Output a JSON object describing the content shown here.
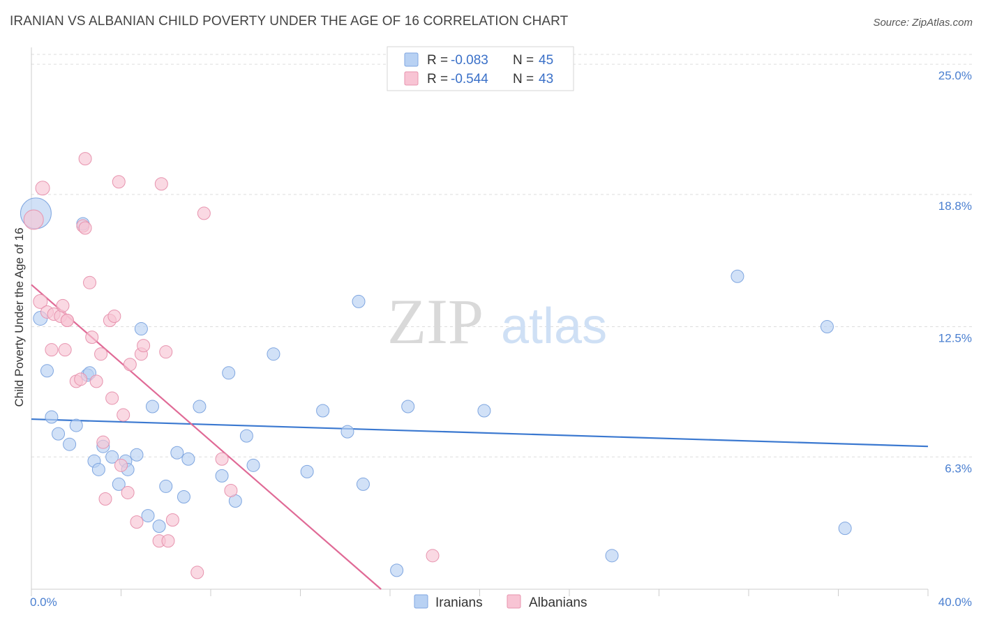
{
  "title": "IRANIAN VS ALBANIAN CHILD POVERTY UNDER THE AGE OF 16 CORRELATION CHART",
  "source": "Source: ZipAtlas.com",
  "watermark": {
    "zip": "ZIP",
    "atlas": "atlas"
  },
  "legend": {
    "r_label": "R = ",
    "n_label": "N = ",
    "items": [
      {
        "r": "-0.083",
        "n": "45",
        "fill": "#b8d1f3",
        "stroke": "#7fa6e0"
      },
      {
        "r": "-0.544",
        "n": "43",
        "fill": "#f8c4d4",
        "stroke": "#e793ae"
      }
    ]
  },
  "bottom_legend": [
    "Iranians",
    "Albanians"
  ],
  "chart_data": {
    "type": "scatter",
    "ylabel": "Child Poverty Under the Age of 16",
    "xlim": [
      0,
      40
    ],
    "ylim": [
      0,
      25.8
    ],
    "x_tick_labels": [
      "0.0%",
      "40.0%"
    ],
    "y_ticks": [
      {
        "value": 6.3,
        "label": "6.3%"
      },
      {
        "value": 12.5,
        "label": "12.5%"
      },
      {
        "value": 18.8,
        "label": "18.8%"
      },
      {
        "value": 25.0,
        "label": "25.0%"
      }
    ],
    "grid": "horizontal-dashed",
    "legend_placement": "top-center",
    "colors": {
      "Iranians": "#3a78d0",
      "Albanians": "#e06a96"
    },
    "series": [
      {
        "name": "Iranians",
        "trend": {
          "x": [
            0,
            40
          ],
          "y": [
            8.1,
            6.8
          ]
        },
        "points": [
          [
            0.2,
            17.9,
            22
          ],
          [
            0.4,
            12.9,
            10
          ],
          [
            0.7,
            10.4,
            9
          ],
          [
            0.9,
            8.2,
            9
          ],
          [
            1.2,
            7.4,
            9
          ],
          [
            1.7,
            6.9,
            9
          ],
          [
            2.0,
            7.8,
            9
          ],
          [
            2.3,
            17.4,
            9
          ],
          [
            2.5,
            10.2,
            9
          ],
          [
            2.6,
            10.3,
            9
          ],
          [
            2.8,
            6.1,
            9
          ],
          [
            3.0,
            5.7,
            9
          ],
          [
            3.2,
            6.8,
            9
          ],
          [
            3.6,
            6.3,
            9
          ],
          [
            3.9,
            5.0,
            9
          ],
          [
            4.2,
            6.1,
            9
          ],
          [
            4.3,
            5.7,
            9
          ],
          [
            4.7,
            6.4,
            9
          ],
          [
            4.9,
            12.4,
            9
          ],
          [
            5.2,
            3.5,
            9
          ],
          [
            5.4,
            8.7,
            9
          ],
          [
            5.7,
            3.0,
            9
          ],
          [
            6.0,
            4.9,
            9
          ],
          [
            6.5,
            6.5,
            9
          ],
          [
            6.8,
            4.4,
            9
          ],
          [
            7.0,
            6.2,
            9
          ],
          [
            7.5,
            8.7,
            9
          ],
          [
            8.5,
            5.4,
            9
          ],
          [
            8.8,
            10.3,
            9
          ],
          [
            9.1,
            4.2,
            9
          ],
          [
            9.6,
            7.3,
            9
          ],
          [
            9.9,
            5.9,
            9
          ],
          [
            10.8,
            11.2,
            9
          ],
          [
            12.3,
            5.6,
            9
          ],
          [
            13.0,
            8.5,
            9
          ],
          [
            14.1,
            7.5,
            9
          ],
          [
            14.6,
            13.7,
            9
          ],
          [
            14.8,
            5.0,
            9
          ],
          [
            16.3,
            0.9,
            9
          ],
          [
            16.8,
            8.7,
            9
          ],
          [
            20.2,
            8.5,
            9
          ],
          [
            25.9,
            1.6,
            9
          ],
          [
            31.5,
            14.9,
            9
          ],
          [
            35.5,
            12.5,
            9
          ],
          [
            36.3,
            2.9,
            9
          ]
        ]
      },
      {
        "name": "Albanians",
        "trend": {
          "x": [
            0,
            15.6
          ],
          "y": [
            14.5,
            0
          ]
        },
        "points": [
          [
            0.1,
            17.6,
            14
          ],
          [
            0.4,
            13.7,
            10
          ],
          [
            0.5,
            19.1,
            10
          ],
          [
            0.7,
            13.2,
            9
          ],
          [
            0.9,
            11.4,
            9
          ],
          [
            1.0,
            13.1,
            9
          ],
          [
            1.3,
            13.0,
            9
          ],
          [
            1.4,
            13.5,
            9
          ],
          [
            1.5,
            11.4,
            9
          ],
          [
            1.6,
            12.8,
            9
          ],
          [
            2.0,
            9.9,
            9
          ],
          [
            2.3,
            17.3,
            9
          ],
          [
            2.4,
            17.2,
            9
          ],
          [
            2.2,
            10.0,
            9
          ],
          [
            2.4,
            20.5,
            9
          ],
          [
            2.6,
            14.6,
            9
          ],
          [
            2.7,
            12.0,
            9
          ],
          [
            2.9,
            9.9,
            9
          ],
          [
            3.1,
            11.2,
            9
          ],
          [
            3.2,
            7.0,
            9
          ],
          [
            3.3,
            4.3,
            9
          ],
          [
            3.5,
            12.8,
            9
          ],
          [
            3.6,
            9.1,
            9
          ],
          [
            3.7,
            13.0,
            9
          ],
          [
            3.9,
            19.4,
            9
          ],
          [
            4.1,
            8.3,
            9
          ],
          [
            4.3,
            4.6,
            9
          ],
          [
            4.4,
            10.7,
            9
          ],
          [
            4.7,
            3.2,
            9
          ],
          [
            4.9,
            11.2,
            9
          ],
          [
            5.0,
            11.6,
            9
          ],
          [
            5.7,
            2.3,
            9
          ],
          [
            5.8,
            19.3,
            9
          ],
          [
            6.0,
            11.3,
            9
          ],
          [
            6.1,
            2.3,
            9
          ],
          [
            6.3,
            3.3,
            9
          ],
          [
            7.4,
            0.8,
            9
          ],
          [
            7.7,
            17.9,
            9
          ],
          [
            8.5,
            6.2,
            9
          ],
          [
            8.9,
            4.7,
            9
          ],
          [
            17.9,
            1.6,
            9
          ],
          [
            4.0,
            5.9,
            9
          ],
          [
            1.6,
            12.8,
            9
          ]
        ]
      }
    ]
  }
}
